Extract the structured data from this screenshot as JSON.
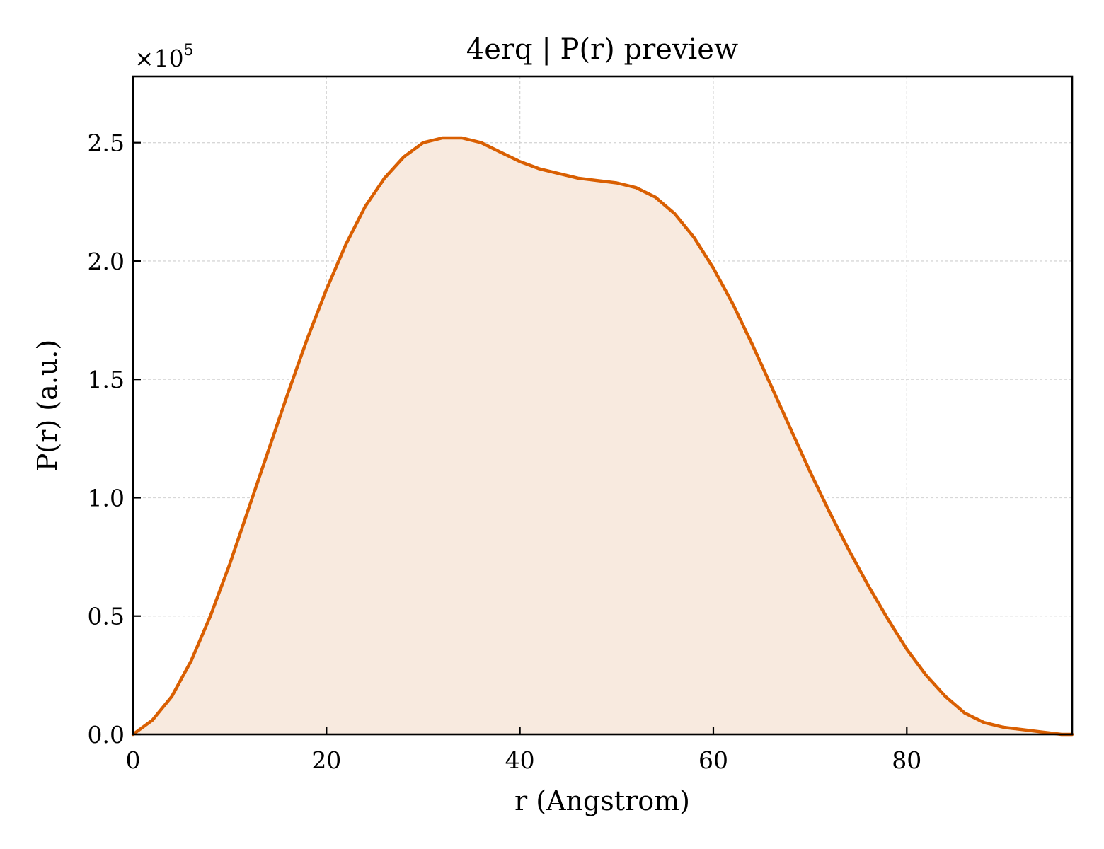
{
  "chart_data": {
    "type": "area",
    "title": "4erq | P(r) preview",
    "xlabel": "r (Angstrom)",
    "ylabel": "P(r) (a.u.)",
    "y_offset_label": "×10",
    "y_offset_exponent": "5",
    "xlim": [
      0,
      97.1
    ],
    "ylim": [
      0,
      2.78
    ],
    "x_ticks": [
      0,
      20,
      40,
      60,
      80
    ],
    "x_tick_labels": [
      "0",
      "20",
      "40",
      "60",
      "80"
    ],
    "y_ticks": [
      0,
      0.5,
      1.0,
      1.5,
      2.0,
      2.5
    ],
    "y_tick_labels": [
      "0.0",
      "0.5",
      "1.0",
      "1.5",
      "2.0",
      "2.5"
    ],
    "grid": true,
    "line_color": "#d95f02",
    "fill_color": "#f8eadf",
    "series": [
      {
        "x": [
          0,
          2,
          4,
          6,
          8,
          10,
          12,
          14,
          16,
          18,
          20,
          22,
          24,
          26,
          28,
          30,
          32,
          34,
          36,
          38,
          40,
          42,
          44,
          46,
          48,
          50,
          52,
          54,
          56,
          58,
          60,
          62,
          64,
          66,
          68,
          70,
          72,
          74,
          76,
          78,
          80,
          82,
          84,
          86,
          88,
          90,
          92,
          94,
          96,
          97.1
        ],
        "y": [
          0.0,
          0.06,
          0.16,
          0.31,
          0.5,
          0.72,
          0.96,
          1.2,
          1.44,
          1.67,
          1.88,
          2.07,
          2.23,
          2.35,
          2.44,
          2.5,
          2.52,
          2.52,
          2.5,
          2.46,
          2.42,
          2.39,
          2.37,
          2.35,
          2.34,
          2.33,
          2.31,
          2.27,
          2.2,
          2.1,
          1.97,
          1.82,
          1.65,
          1.47,
          1.29,
          1.11,
          0.94,
          0.78,
          0.63,
          0.49,
          0.36,
          0.25,
          0.16,
          0.09,
          0.05,
          0.03,
          0.02,
          0.01,
          0.0,
          0.0
        ]
      }
    ]
  }
}
